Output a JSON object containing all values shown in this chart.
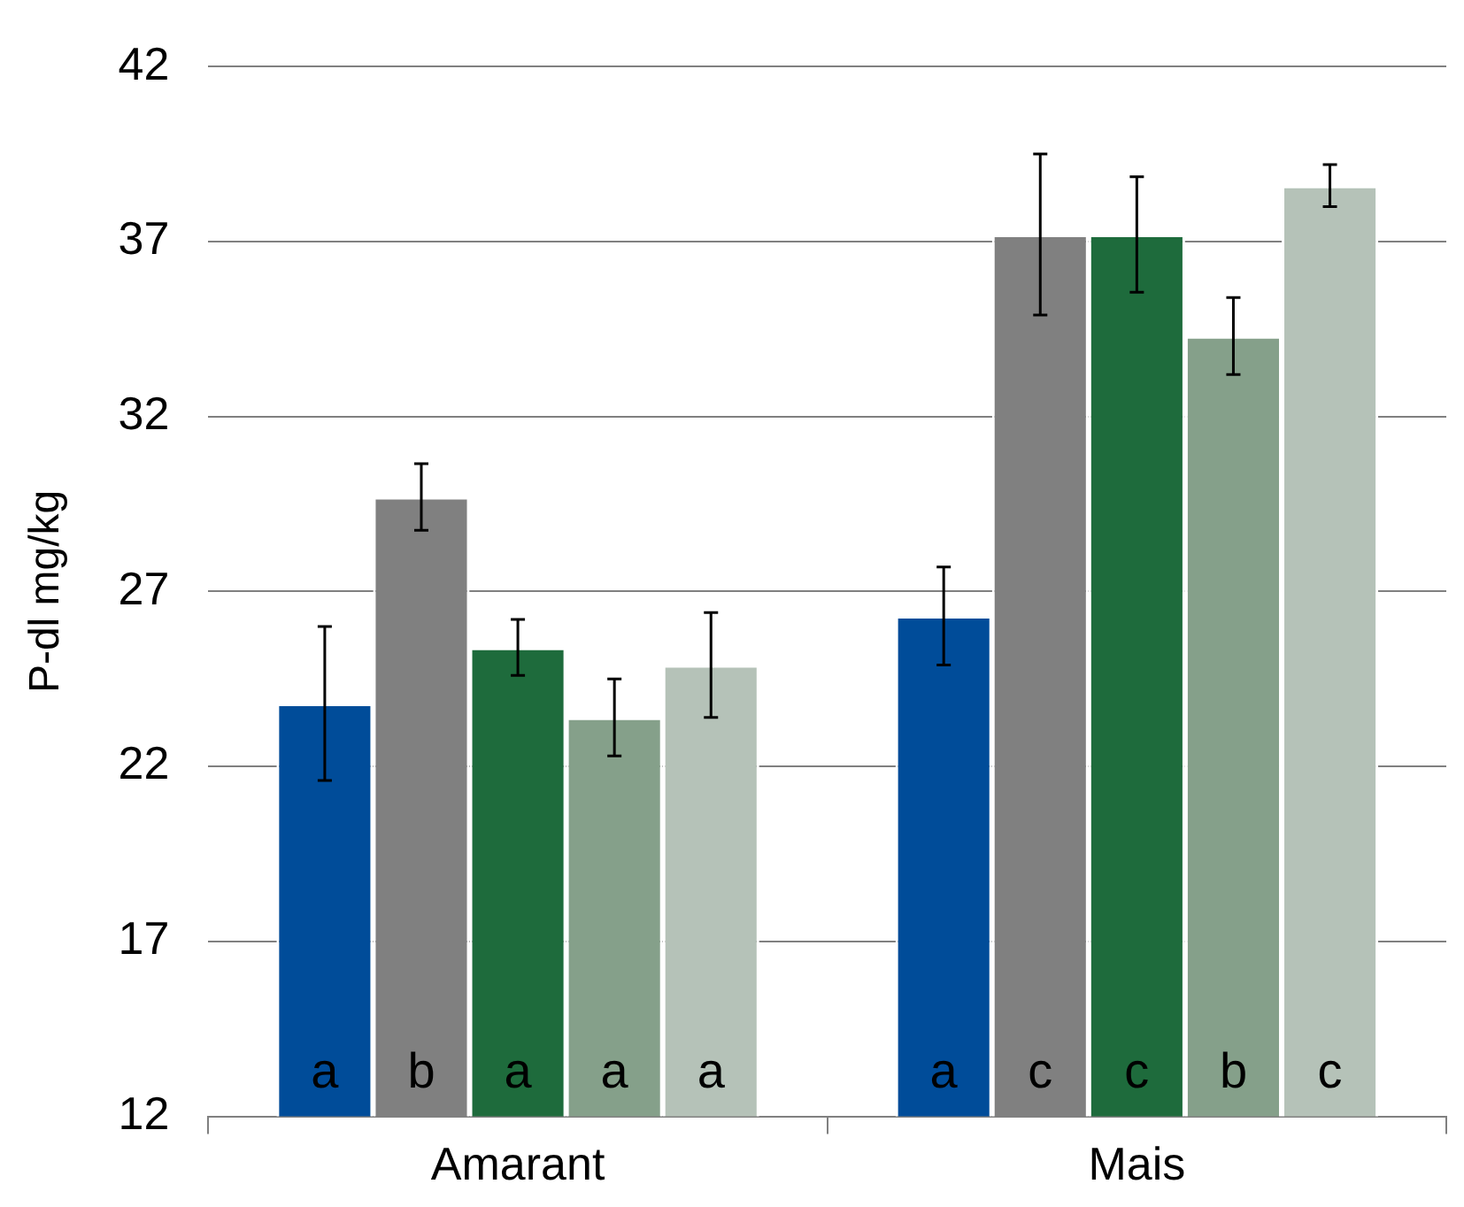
{
  "chart_data": {
    "type": "bar",
    "ylabel": "P-dl mg/kg",
    "categories": [
      "Amarant",
      "Mais"
    ],
    "series": [
      {
        "color": "#004c99",
        "values": [
          23.8,
          26.3
        ],
        "errors": [
          2.2,
          1.4
        ],
        "value_labels": [
          "a",
          "a"
        ]
      },
      {
        "color": "#808080",
        "values": [
          29.7,
          37.2
        ],
        "errors": [
          0.95,
          2.3
        ],
        "value_labels": [
          "b",
          "c"
        ]
      },
      {
        "color": "#1e6b3c",
        "values": [
          25.4,
          37.2
        ],
        "errors": [
          0.8,
          1.65
        ],
        "value_labels": [
          "a",
          "c"
        ]
      },
      {
        "color": "#85a08a",
        "values": [
          23.4,
          34.3
        ],
        "errors": [
          1.1,
          1.1
        ],
        "value_labels": [
          "a",
          "b"
        ]
      },
      {
        "color": "#b5c2b8",
        "values": [
          24.9,
          38.6
        ],
        "errors": [
          1.5,
          0.6
        ],
        "value_labels": [
          "a",
          "c"
        ]
      }
    ],
    "ylim": [
      12,
      42
    ],
    "yticks": [
      12,
      17,
      22,
      27,
      32,
      37,
      42
    ],
    "grid": "y",
    "legend": false
  }
}
